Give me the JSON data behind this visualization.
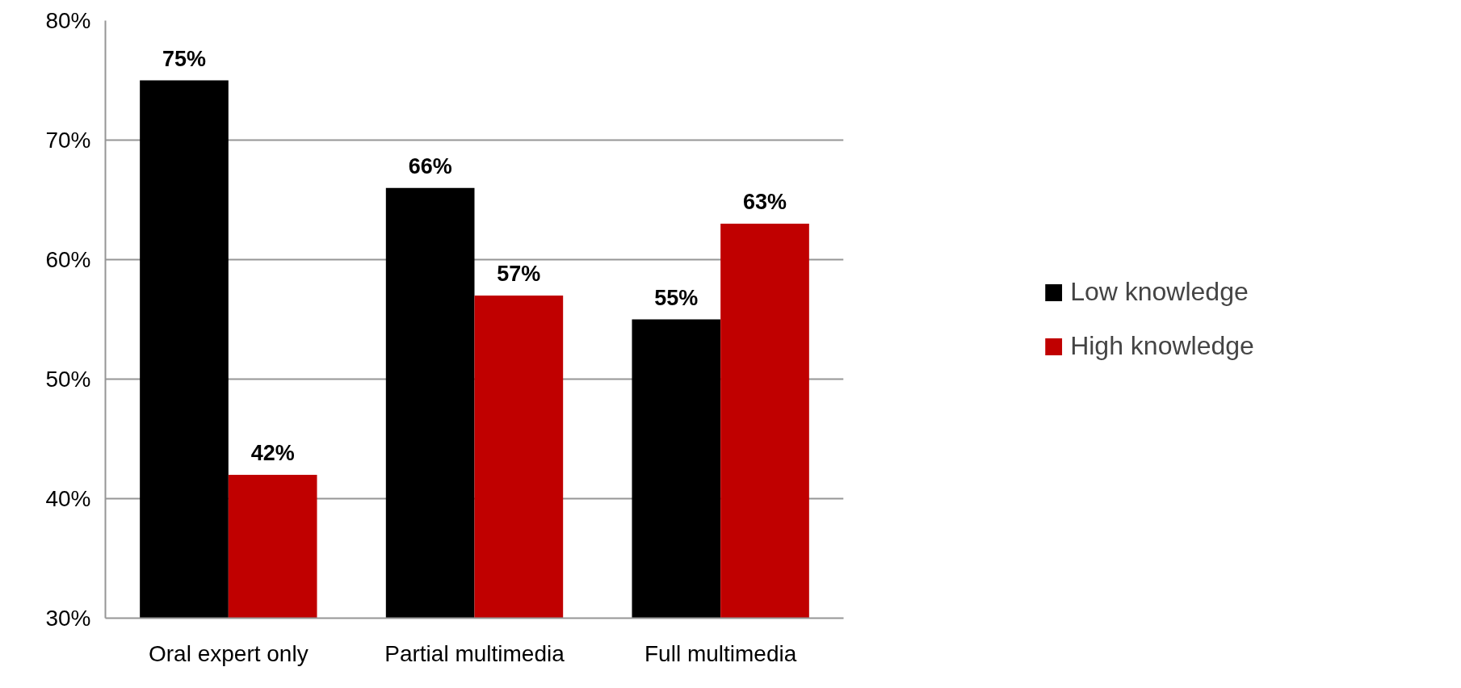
{
  "chart_data": {
    "type": "bar",
    "categories": [
      "Oral expert only",
      "Partial multimedia",
      "Full multimedia"
    ],
    "series": [
      {
        "name": "Low knowledge",
        "color": "#000000",
        "values": [
          75,
          66,
          55
        ],
        "value_labels": [
          "75%",
          "66%",
          "55%"
        ]
      },
      {
        "name": "High knowledge",
        "color": "#c00000",
        "values": [
          42,
          57,
          63
        ],
        "value_labels": [
          "42%",
          "57%",
          "63%"
        ]
      }
    ],
    "ylim": [
      30,
      80
    ],
    "yticks": [
      {
        "value": 30,
        "label": "30%"
      },
      {
        "value": 40,
        "label": "40%"
      },
      {
        "value": 50,
        "label": "50%"
      },
      {
        "value": 60,
        "label": "60%"
      },
      {
        "value": 70,
        "label": "70%"
      },
      {
        "value": 80,
        "label": "80%"
      }
    ],
    "grid": "y",
    "legend": "right"
  }
}
